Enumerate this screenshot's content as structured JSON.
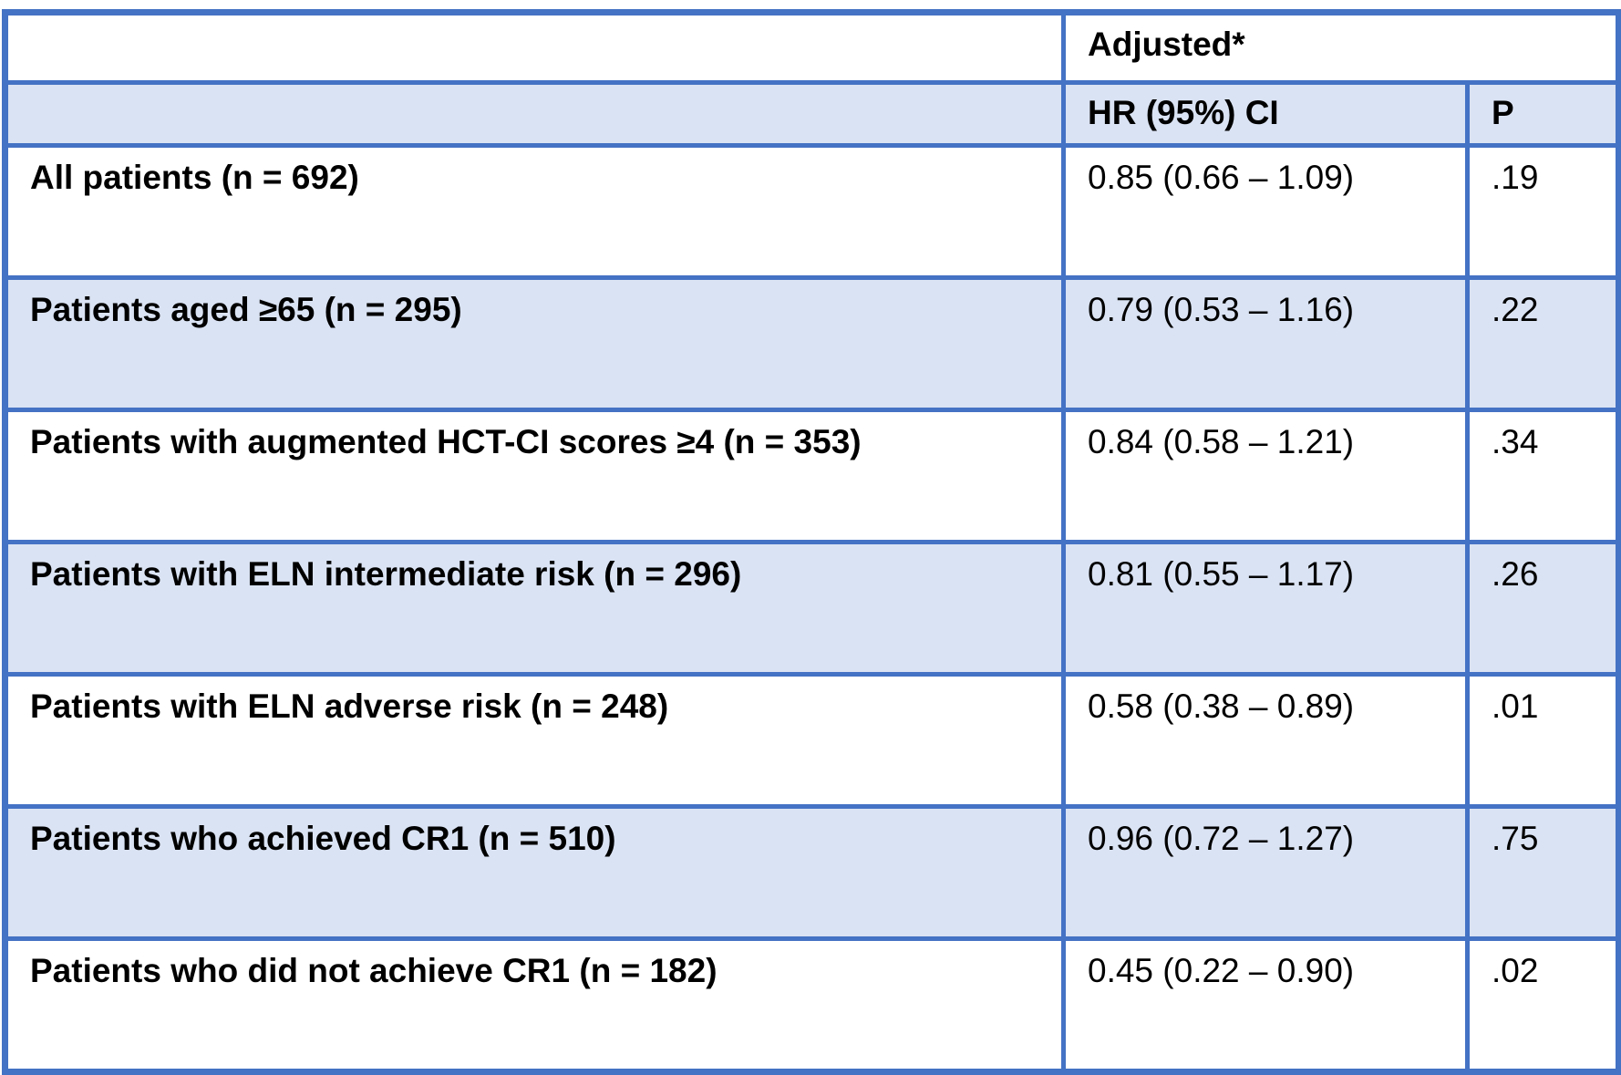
{
  "table": {
    "title_semantic": "Adjusted hazard ratio subgroup analysis table",
    "header_group_label": "Adjusted*",
    "columns": {
      "label": "",
      "hr": "HR (95%) CI",
      "p": "P"
    },
    "rows": [
      {
        "label": "All patients (n = 692)",
        "hr": "0.85 (0.66 – 1.09)",
        "p": ".19"
      },
      {
        "label": "Patients aged ≥65 (n = 295)",
        "hr": "0.79 (0.53 – 1.16)",
        "p": ".22"
      },
      {
        "label": "Patients with augmented HCT-CI scores ≥4 (n = 353)",
        "hr": "0.84 (0.58 – 1.21)",
        "p": ".34"
      },
      {
        "label": "Patients with ELN intermediate risk (n = 296)",
        "hr": "0.81 (0.55 – 1.17)",
        "p": ".26"
      },
      {
        "label": "Patients with ELN adverse risk (n = 248)",
        "hr": "0.58 (0.38 – 0.89)",
        "p": ".01"
      },
      {
        "label": "Patients who achieved CR1 (n = 510)",
        "hr": "0.96 (0.72 – 1.27)",
        "p": ".75"
      },
      {
        "label": "Patients who did not achieve CR1 (n = 182)",
        "hr": "0.45 (0.22 – 0.90)",
        "p": ".02"
      }
    ],
    "colors": {
      "border": "#4472C4",
      "shaded_row": "#DAE3F3",
      "text": "#000000",
      "background": "#FFFFFF"
    }
  },
  "chart_data": {
    "type": "table",
    "title": "Adjusted*",
    "column_headers": [
      "",
      "HR (95%) CI",
      "P"
    ],
    "rows": [
      [
        "All patients (n = 692)",
        "0.85 (0.66 – 1.09)",
        ".19"
      ],
      [
        "Patients aged ≥65 (n = 295)",
        "0.79 (0.53 – 1.16)",
        ".22"
      ],
      [
        "Patients with augmented HCT-CI scores ≥4 (n = 353)",
        "0.84 (0.58 – 1.21)",
        ".34"
      ],
      [
        "Patients with ELN intermediate risk (n = 296)",
        "0.81 (0.55 – 1.17)",
        ".26"
      ],
      [
        "Patients with ELN adverse risk (n = 248)",
        "0.58 (0.38 – 0.89)",
        ".01"
      ],
      [
        "Patients who achieved CR1 (n = 510)",
        "0.96 (0.72 – 1.27)",
        ".75"
      ],
      [
        "Patients who did not achieve CR1 (n = 182)",
        "0.45 (0.22 – 0.90)",
        ".02"
      ]
    ]
  }
}
